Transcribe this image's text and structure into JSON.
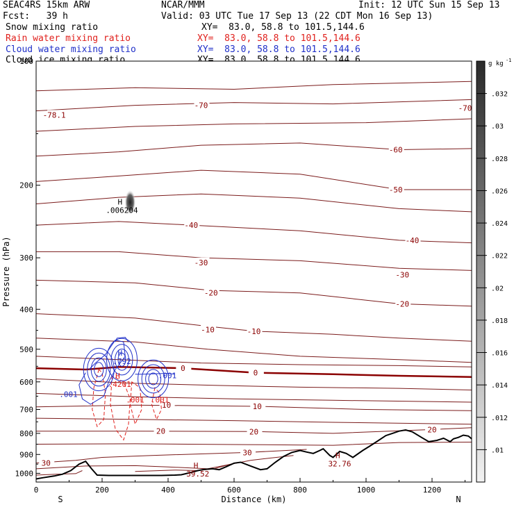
{
  "header": {
    "model": "SEAC4RS 15km ARW",
    "center": "NCAR/MMM",
    "init": "Init: 12 UTC Sun 15 Sep 13",
    "fcst": "Fcst:   39 h",
    "valid": "Valid: 03 UTC Tue 17 Sep 13 (22 CDT Mon 16 Sep 13)"
  },
  "fields": [
    {
      "label": "Snow mixing ratio",
      "xy": "XY=  83.0, 58.8 to 101.5,144.6",
      "color": "#000000"
    },
    {
      "label": "Rain water mixing ratio",
      "xy": "XY=  83.0, 58.8 to 101.5,144.6",
      "color": "#e0201c"
    },
    {
      "label": "Cloud water mixing ratio",
      "xy": "XY=  83.0, 58.8 to 101.5,144.6",
      "color": "#1f2fc8"
    },
    {
      "label": "Cloud ice mixing ratio",
      "xy": "XY=  83.0, 58.8 to 101.5,144.6",
      "color": "#000000"
    }
  ],
  "chart_data": {
    "type": "contour",
    "xlabel": "Distance (km)",
    "ylabel": "Pressure (hPa)",
    "xlim": [
      0,
      1320
    ],
    "ylim": [
      1050,
      100
    ],
    "y_scale": "log",
    "xticks": [
      0,
      200,
      400,
      600,
      800,
      1000,
      1200
    ],
    "yticks": [
      200,
      300,
      400,
      500,
      600,
      700,
      800,
      900,
      1000
    ],
    "ytick_top_label": "100",
    "x_endpoints": {
      "left": "S",
      "right": "N"
    },
    "colorbar": {
      "unit_label": "g kg",
      "unit_exponent": "-1",
      "levels": [
        ".01",
        ".012",
        ".014",
        ".016",
        ".018",
        ".02",
        ".022",
        ".024",
        ".026",
        ".028",
        ".03",
        ".032"
      ]
    },
    "temperature_contours": {
      "units": "C",
      "line_color": "#7a1a1a",
      "zero_line_color": "#8b0000",
      "labels": [
        {
          "text": "-78.1",
          "x": 55,
          "p": 135
        },
        {
          "text": "-70",
          "x": 500,
          "p": 128
        },
        {
          "text": "-70",
          "x": 1300,
          "p": 130
        },
        {
          "text": "-60",
          "x": 1090,
          "p": 164
        },
        {
          "text": "-50",
          "x": 1090,
          "p": 205
        },
        {
          "text": "-40",
          "x": 470,
          "p": 250
        },
        {
          "text": "-40",
          "x": 1140,
          "p": 272
        },
        {
          "text": "-30",
          "x": 500,
          "p": 308
        },
        {
          "text": "-30",
          "x": 1110,
          "p": 330
        },
        {
          "text": "-20",
          "x": 530,
          "p": 365
        },
        {
          "text": "-20",
          "x": 1110,
          "p": 388
        },
        {
          "text": "-10",
          "x": 520,
          "p": 448
        },
        {
          "text": "-10",
          "x": 660,
          "p": 452
        },
        {
          "text": "0",
          "x": 445,
          "p": 556
        },
        {
          "text": "0",
          "x": 665,
          "p": 570
        },
        {
          "text": "10",
          "x": 395,
          "p": 683
        },
        {
          "text": "10",
          "x": 670,
          "p": 688
        },
        {
          "text": "20",
          "x": 378,
          "p": 790
        },
        {
          "text": "20",
          "x": 660,
          "p": 792
        },
        {
          "text": "20",
          "x": 1200,
          "p": 783
        },
        {
          "text": "30",
          "x": 640,
          "p": 890
        },
        {
          "text": "30",
          "x": 30,
          "p": 944
        }
      ]
    },
    "extrema": [
      {
        "letter": "H",
        "value": ".006204",
        "x": 260,
        "p": 228,
        "color": "#000000"
      },
      {
        "letter": "H",
        "value": ".792",
        "x": 260,
        "p": 530,
        "color": "#1f2fc8"
      },
      {
        "letter": "H",
        "value": ".4201",
        "x": 253,
        "p": 603,
        "color": "#e0201c"
      },
      {
        "letter": "H",
        "value": "32.76",
        "x": 920,
        "p": 940,
        "color": "#8b0000"
      },
      {
        "letter": "H",
        "value": "39.52",
        "x": 490,
        "p": 995,
        "color": "#8b0000"
      },
      {
        "letter": "",
        "value": ".001",
        "x": 398,
        "p": 574,
        "color": "#1f2fc8"
      },
      {
        "letter": "",
        "value": ".001",
        "x": 98,
        "p": 638,
        "color": "#1f2fc8"
      },
      {
        "letter": "",
        "value": ".001",
        "x": 300,
        "p": 658,
        "color": "#e0201c"
      },
      {
        "letter": "",
        "value": ".001",
        "x": 375,
        "p": 658,
        "color": "#e0201c"
      }
    ],
    "terrain": {
      "description_units": "surface pressure hPa",
      "points": [
        [
          0,
          1032
        ],
        [
          20,
          1025
        ],
        [
          55,
          1015
        ],
        [
          80,
          1005
        ],
        [
          105,
          985
        ],
        [
          130,
          950
        ],
        [
          150,
          935
        ],
        [
          168,
          975
        ],
        [
          185,
          1010
        ],
        [
          220,
          1012
        ],
        [
          300,
          1012
        ],
        [
          380,
          1012
        ],
        [
          420,
          1010
        ],
        [
          440,
          1008
        ],
        [
          470,
          995
        ],
        [
          490,
          985
        ],
        [
          510,
          978
        ],
        [
          535,
          975
        ],
        [
          555,
          980
        ],
        [
          575,
          965
        ],
        [
          600,
          945
        ],
        [
          620,
          940
        ],
        [
          650,
          960
        ],
        [
          680,
          980
        ],
        [
          700,
          975
        ],
        [
          725,
          940
        ],
        [
          750,
          910
        ],
        [
          775,
          890
        ],
        [
          800,
          880
        ],
        [
          820,
          888
        ],
        [
          840,
          895
        ],
        [
          860,
          880
        ],
        [
          870,
          872
        ],
        [
          890,
          905
        ],
        [
          900,
          915
        ],
        [
          920,
          885
        ],
        [
          940,
          895
        ],
        [
          950,
          905
        ],
        [
          960,
          915
        ],
        [
          990,
          880
        ],
        [
          1010,
          860
        ],
        [
          1030,
          840
        ],
        [
          1060,
          810
        ],
        [
          1080,
          800
        ],
        [
          1100,
          790
        ],
        [
          1120,
          785
        ],
        [
          1140,
          793
        ],
        [
          1170,
          820
        ],
        [
          1190,
          838
        ],
        [
          1215,
          832
        ],
        [
          1235,
          822
        ],
        [
          1255,
          838
        ],
        [
          1265,
          825
        ],
        [
          1280,
          818
        ],
        [
          1295,
          808
        ],
        [
          1310,
          812
        ],
        [
          1320,
          825
        ]
      ]
    }
  }
}
